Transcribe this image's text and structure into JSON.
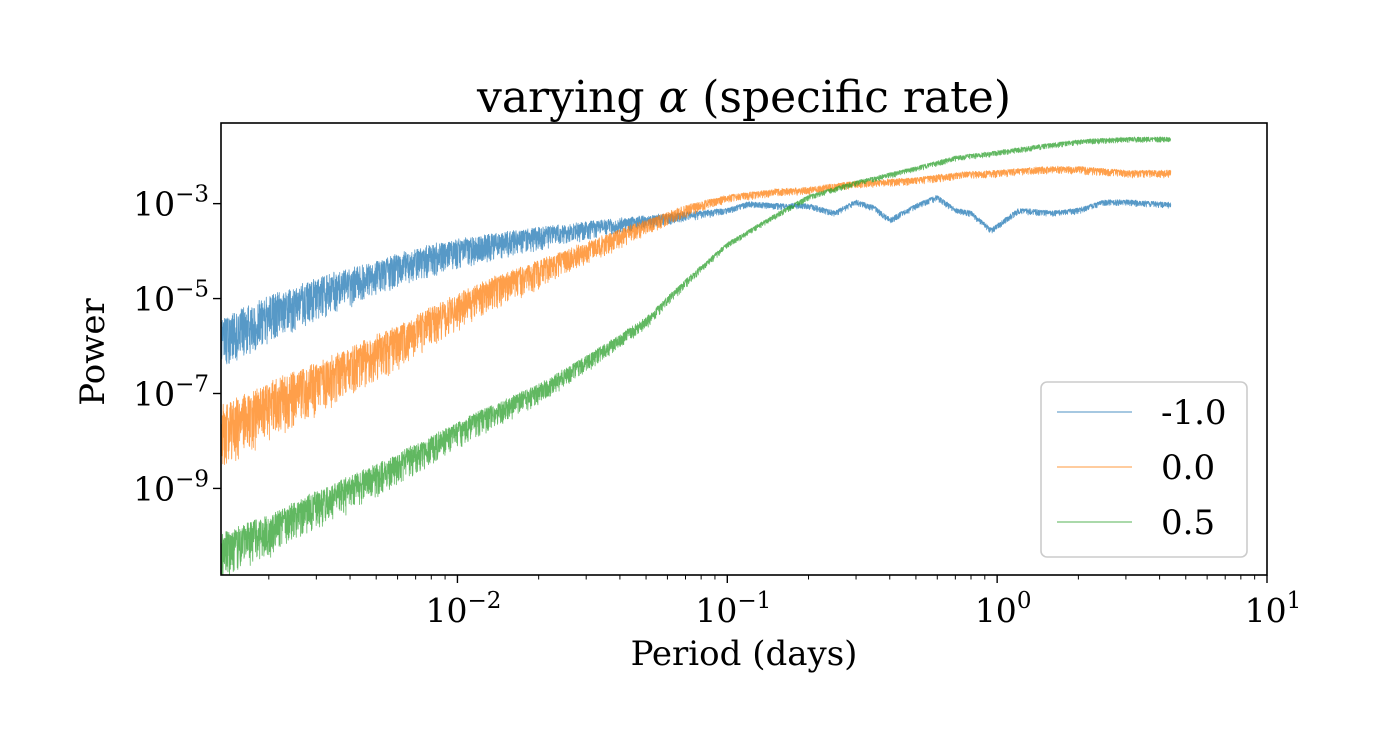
{
  "chart_data": {
    "type": "line",
    "title_prefix": "varying ",
    "title_symbol": "α",
    "title_suffix": " (specific rate)",
    "xlabel": "Period (days)",
    "ylabel": "Power",
    "xscale": "log",
    "yscale": "log",
    "xlim": [
      0.00133,
      10
    ],
    "ylim": [
      1.5e-11,
      0.05
    ],
    "xticks": [
      {
        "value": 0.01,
        "base": "10",
        "exp": "−2"
      },
      {
        "value": 0.1,
        "base": "10",
        "exp": "−1"
      },
      {
        "value": 1,
        "base": "10",
        "exp": "0"
      },
      {
        "value": 10,
        "base": "10",
        "exp": "1"
      }
    ],
    "yticks": [
      {
        "value": 1e-09,
        "base": "10",
        "exp": "−9"
      },
      {
        "value": 1e-07,
        "base": "10",
        "exp": "−7"
      },
      {
        "value": 1e-05,
        "base": "10",
        "exp": "−5"
      },
      {
        "value": 0.001,
        "base": "10",
        "exp": "−3"
      }
    ],
    "grid": false,
    "legend_position": "lower-right",
    "series": [
      {
        "name": "-1.0",
        "color": "#1f77b4",
        "noise_short": 1.0,
        "points": [
          [
            0.00133,
            3.5e-06
          ],
          [
            0.002,
            1e-05
          ],
          [
            0.003,
            2.5e-05
          ],
          [
            0.005,
            6e-05
          ],
          [
            0.008,
            0.00013
          ],
          [
            0.012,
            0.0002
          ],
          [
            0.02,
            0.0003
          ],
          [
            0.03,
            0.0004
          ],
          [
            0.05,
            0.00055
          ],
          [
            0.08,
            0.0007
          ],
          [
            0.1,
            0.0008
          ],
          [
            0.12,
            0.0011
          ],
          [
            0.15,
            0.001
          ],
          [
            0.2,
            0.001
          ],
          [
            0.25,
            0.0007
          ],
          [
            0.3,
            0.0012
          ],
          [
            0.35,
            0.0009
          ],
          [
            0.4,
            0.0005
          ],
          [
            0.5,
            0.001
          ],
          [
            0.6,
            0.0015
          ],
          [
            0.7,
            0.0008
          ],
          [
            0.8,
            0.0007
          ],
          [
            0.95,
            0.0003
          ],
          [
            1.2,
            0.0008
          ],
          [
            1.6,
            0.0007
          ],
          [
            2.0,
            0.0008
          ],
          [
            2.5,
            0.0012
          ],
          [
            3.0,
            0.0012
          ],
          [
            4.4,
            0.00105
          ]
        ]
      },
      {
        "name": "0.0",
        "color": "#ff7f0e",
        "noise_short": 1.25,
        "points": [
          [
            0.00133,
            5e-08
          ],
          [
            0.002,
            1.5e-07
          ],
          [
            0.003,
            4e-07
          ],
          [
            0.005,
            1.5e-06
          ],
          [
            0.008,
            6e-06
          ],
          [
            0.012,
            2e-05
          ],
          [
            0.02,
            6e-05
          ],
          [
            0.03,
            0.00015
          ],
          [
            0.05,
            0.00045
          ],
          [
            0.07,
            0.0009
          ],
          [
            0.1,
            0.0015
          ],
          [
            0.15,
            0.002
          ],
          [
            0.2,
            0.0022
          ],
          [
            0.3,
            0.003
          ],
          [
            0.5,
            0.0035
          ],
          [
            0.7,
            0.0045
          ],
          [
            1.0,
            0.005
          ],
          [
            1.5,
            0.006
          ],
          [
            2.0,
            0.006
          ],
          [
            3.0,
            0.005
          ],
          [
            4.4,
            0.005
          ]
        ]
      },
      {
        "name": "0.5",
        "color": "#2ca02c",
        "noise_short": 0.9,
        "points": [
          [
            0.00133,
            1e-10
          ],
          [
            0.002,
            2.5e-10
          ],
          [
            0.003,
            8e-10
          ],
          [
            0.005,
            3e-09
          ],
          [
            0.008,
            1.2e-08
          ],
          [
            0.012,
            4e-08
          ],
          [
            0.02,
            1.5e-07
          ],
          [
            0.03,
            6e-07
          ],
          [
            0.05,
            4e-06
          ],
          [
            0.07,
            2.5e-05
          ],
          [
            0.1,
            0.00015
          ],
          [
            0.15,
            0.0006
          ],
          [
            0.2,
            0.0015
          ],
          [
            0.3,
            0.003
          ],
          [
            0.5,
            0.006
          ],
          [
            0.7,
            0.01
          ],
          [
            1.0,
            0.013
          ],
          [
            1.5,
            0.018
          ],
          [
            2.0,
            0.022
          ],
          [
            3.0,
            0.025
          ],
          [
            4.4,
            0.025
          ]
        ]
      }
    ]
  }
}
